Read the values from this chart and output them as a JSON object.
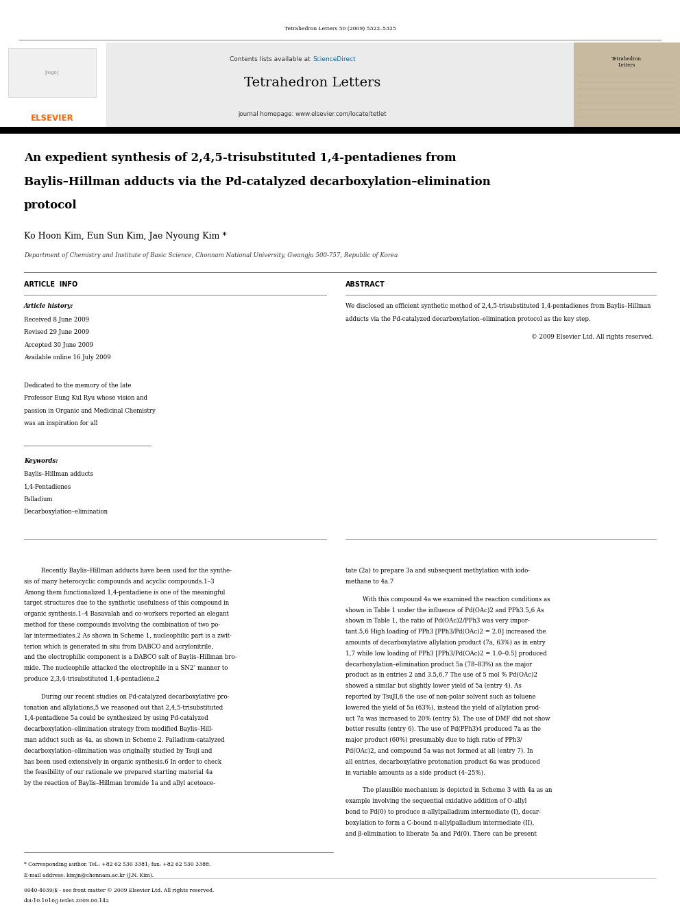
{
  "page_width": 9.92,
  "page_height": 13.23,
  "bg_color": "#ffffff",
  "journal_header_text": "Tetrahedron Letters 50 (2009) 5322–5325",
  "header_bar_color": "#000000",
  "header_bg_color": "#e8e8e8",
  "contents_text": "Contents lists available at ",
  "sciencedirect_text": "ScienceDirect",
  "sciencedirect_color": "#1a6496",
  "journal_name": "Tetrahedron Letters",
  "homepage_text": "journal homepage: www.elsevier.com/locate/tetlet",
  "article_title_line1": "An expedient synthesis of 2,4,5-trisubstituted 1,4-pentadienes from",
  "article_title_line2": "Baylis–Hillman adducts via the Pd-catalyzed decarboxylation–elimination",
  "article_title_line3": "protocol",
  "authors": "Ko Hoon Kim, Eun Sun Kim, Jae Nyoung Kim *",
  "affiliation": "Department of Chemistry and Institute of Basic Science, Chonnam National University, Gwangju 500-757, Republic of Korea",
  "section_article_info": "ARTICLE  INFO",
  "section_abstract": "ABSTRACT",
  "article_history_label": "Article history:",
  "received": "Received 8 June 2009",
  "revised": "Revised 29 June 2009",
  "accepted": "Accepted 30 June 2009",
  "available": "Available online 16 July 2009",
  "dedication_lines": [
    "Dedicated to the memory of the late",
    "Professor Eung Kul Ryu whose vision and",
    "passion in Organic and Medicinal Chemistry",
    "was an inspiration for all"
  ],
  "keywords_label": "Keywords:",
  "keywords": [
    "Baylis–Hillman adducts",
    "1,4-Pentadienes",
    "Palladium",
    "Decarboxylation–elimination"
  ],
  "abstract_lines": [
    "We disclosed an efficient synthetic method of 2,4,5-trisubstituted 1,4-pentadienes from Baylis–Hillman",
    "adducts via the Pd-catalyzed decarboxylation–elimination protocol as the key step."
  ],
  "copyright_text": "© 2009 Elsevier Ltd. All rights reserved.",
  "body_col1_para1_lines": [
    "Recently Baylis–Hillman adducts have been used for the synthe-",
    "sis of many heterocyclic compounds and acyclic compounds.1–3",
    "Among them functionalized 1,4-pentadiene is one of the meaningful",
    "target structures due to the synthetic usefulness of this compound in",
    "organic synthesis.1–4 Basavalah and co-workers reported an elegant",
    "method for these compounds involving the combination of two po-",
    "lar intermediates.2 As shown in Scheme 1, nucleophilic part is a zwit-",
    "terion which is generated in situ from DABCO and acrylonitrile,",
    "and the electrophilic component is a DABCO salt of Baylis–Hillman bro-",
    "mide. The nucleophile attacked the electrophile in a SN2’ manner to",
    "produce 2,3,4-trisubstituted 1,4-pentadiene.2"
  ],
  "body_col1_para2_lines": [
    "During our recent studies on Pd-catalyzed decarboxylative pro-",
    "tonation and allylations,5 we reasoned out that 2,4,5-trisubstituted",
    "1,4-pentadiene 5a could be synthesized by using Pd-catalyzed",
    "decarboxylation–elimination strategy from modified Baylis–Hill-",
    "man adduct such as 4a, as shown in Scheme 2. Palladium-catalyzed",
    "decarboxylation–elimination was originally studied by Tsuji and",
    "has been used extensively in organic synthesis.6 In order to check",
    "the feasibility of our rationale we prepared starting material 4a",
    "by the reaction of Baylis–Hillman bromide 1a and allyl acetoace-"
  ],
  "body_col2_intro_lines": [
    "tate (2a) to prepare 3a and subsequent methylation with iodo-",
    "methane to 4a.7"
  ],
  "body_col2_para2_lines": [
    "With this compound 4a we examined the reaction conditions as",
    "shown in Table 1 under the influence of Pd(OAc)2 and PPh3.5,6 As",
    "shown in Table 1, the ratio of Pd(OAc)2/PPh3 was very impor-",
    "tant.5,6 High loading of PPh3 [PPh3/Pd(OAc)2 = 2.0] increased the",
    "amounts of decarboxylative allylation product (7a, 63%) as in entry",
    "1,7 while low loading of PPh3 [PPh3/Pd(OAc)2 = 1.0–0.5] produced",
    "decarboxylation–elimination product 5a (78–83%) as the major",
    "product as in entries 2 and 3.5,6,7 The use of 5 mol % Pd(OAc)2",
    "showed a similar but slightly lower yield of 5a (entry 4). As",
    "reported by TsuJI,6 the use of non-polar solvent such as toluene",
    "lowered the yield of 5a (63%), instead the yield of allylation prod-",
    "uct 7a was increased to 20% (entry 5). The use of DMF did not show",
    "better results (entry 6). The use of Pd(PPh3)4 produced 7a as the",
    "major product (60%) presumably due to high ratio of PPh3/",
    "Pd(OAc)2, and compound 5a was not formed at all (entry 7). In",
    "all entries, decarboxylative protonation product 6a was produced",
    "in variable amounts as a side product (4–25%)."
  ],
  "body_col2_para3_lines": [
    "The plausible mechanism is depicted in Scheme 3 with 4a as an",
    "example involving the sequential oxidative addition of O-allyl",
    "bond to Pd(0) to produce π-allylpalladium intermediate (I), decar-",
    "boxylation to form a C-bound π-allylpalladium intermediate (II),",
    "and β-elimination to liberate 5a and Pd(0). There can be present"
  ],
  "footnote_star": "* Corresponding author. Tel.: +82 62 530 3381; fax: +82 62 530 3388.",
  "footnote_email": "E-mail address: kimjn@chonnam.ac.kr (J.N. Kim).",
  "footer_line1": "0040-4039/$ - see front matter © 2009 Elsevier Ltd. All rights reserved.",
  "footer_line2": "doi:10.1016/j.tetlet.2009.06.142",
  "elsevier_color": "#ff6600"
}
